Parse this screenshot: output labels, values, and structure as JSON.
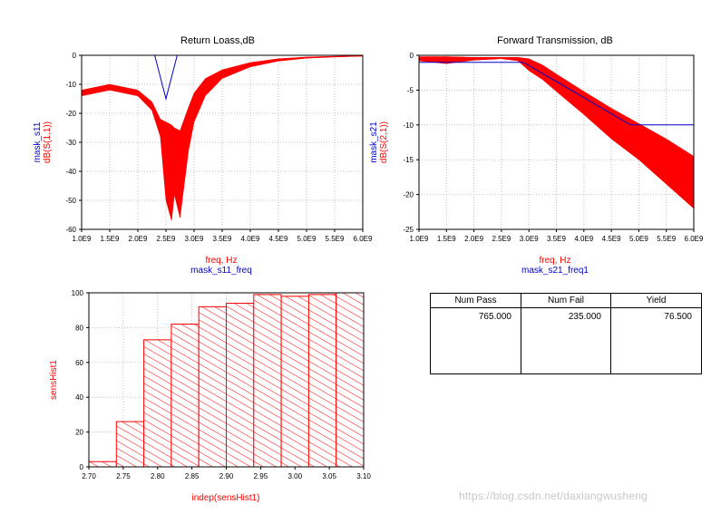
{
  "chart_data": [
    {
      "type": "line",
      "title": "Return Loass,dB",
      "x": [
        1.0,
        1.5,
        2.0,
        2.25,
        2.4,
        2.5,
        2.6,
        2.65,
        2.75,
        2.9,
        3.0,
        3.2,
        3.5,
        4.0,
        4.5,
        5.0,
        5.5,
        6.0
      ],
      "x_units": "GHz",
      "series": [
        {
          "name": "dB(S(1,1))",
          "color": "#ff0000",
          "band": "upper",
          "values": [
            -12,
            -10,
            -12,
            -16,
            -22,
            -23,
            -24,
            -25,
            -26,
            -18,
            -13,
            -8,
            -5,
            -2.5,
            -1.2,
            -0.6,
            -0.3,
            -0.1
          ]
        },
        {
          "name": "dB(S(1,1))",
          "color": "#ff0000",
          "band": "lower",
          "values": [
            -14,
            -12,
            -14,
            -19,
            -28,
            -50,
            -57,
            -48,
            -56,
            -33,
            -23,
            -14,
            -8,
            -4,
            -2,
            -1,
            -0.6,
            -0.3
          ]
        },
        {
          "name": "mask_s11",
          "color": "#0000cc",
          "x": [
            2.3,
            2.5,
            2.5,
            2.7
          ],
          "values": [
            0,
            -15,
            -15,
            0
          ]
        }
      ],
      "xlim": [
        1.0,
        6.0
      ],
      "ylim": [
        -60,
        0
      ],
      "xticks": [
        "1.0E9",
        "1.5E9",
        "2.0E9",
        "2.5E9",
        "3.0E9",
        "3.5E9",
        "4.0E9",
        "4.5E9",
        "5.0E9",
        "5.5E9",
        "6.0E9"
      ],
      "yticks": [
        "0",
        "-10",
        "-20",
        "-30",
        "-40",
        "-50",
        "-60"
      ],
      "xlabel_lines": [
        "freq, Hz",
        "mask_s11_freq"
      ],
      "ylabel_lines": [
        "mask_s11",
        "dB(S(1,1))"
      ]
    },
    {
      "type": "line",
      "title": "Forward Transmission, dB",
      "x": [
        1.0,
        1.5,
        2.0,
        2.5,
        2.8,
        3.0,
        3.25,
        3.5,
        4.0,
        4.5,
        5.0,
        5.5,
        6.0
      ],
      "x_units": "GHz",
      "series": [
        {
          "name": "dB(S(2,1))",
          "color": "#ff0000",
          "band": "upper",
          "values": [
            -0.2,
            -0.2,
            -0.3,
            -0.3,
            -0.3,
            -0.5,
            -1.4,
            -2.7,
            -5.2,
            -7.6,
            -9.8,
            -12,
            -14.5
          ]
        },
        {
          "name": "dB(S(2,1))",
          "color": "#ff0000",
          "band": "lower",
          "values": [
            -0.8,
            -1.2,
            -0.7,
            -0.5,
            -0.8,
            -2.2,
            -3.5,
            -5.2,
            -8.5,
            -12,
            -15,
            -18.5,
            -22
          ]
        },
        {
          "name": "mask_s21",
          "color": "#0000cc",
          "x": [
            1.0,
            2.9,
            4.85,
            6.0
          ],
          "values": [
            -1,
            -1,
            -10,
            -10
          ]
        }
      ],
      "xlim": [
        1.0,
        6.0
      ],
      "ylim": [
        -25,
        0
      ],
      "xticks": [
        "1.0E9",
        "1.5E9",
        "2.0E9",
        "2.5E9",
        "3.0E9",
        "3.5E9",
        "4.0E9",
        "4.5E9",
        "5.0E9",
        "5.5E9",
        "6.0E9"
      ],
      "yticks": [
        "0",
        "-5",
        "-10",
        "-15",
        "-20",
        "-25"
      ],
      "xlabel_lines": [
        "freq, Hz",
        "mask_s21_freq1"
      ],
      "ylabel_lines": [
        "mask_s21",
        "dB(S(2,1))"
      ]
    },
    {
      "type": "bar",
      "title": "",
      "bin_edges": [
        2.7,
        2.74,
        2.78,
        2.82,
        2.86,
        2.9,
        2.94,
        2.98,
        3.02,
        3.06,
        3.1
      ],
      "values": [
        3,
        26,
        73,
        82,
        92,
        94,
        99,
        98,
        99,
        100
      ],
      "color": "#ff0000",
      "xlim": [
        2.7,
        3.1
      ],
      "ylim": [
        0,
        100
      ],
      "xticks": [
        "2.70",
        "2.75",
        "2.80",
        "2.85",
        "2.90",
        "2.95",
        "3.00",
        "3.05",
        "3.10"
      ],
      "yticks": [
        "0",
        "20",
        "40",
        "60",
        "80",
        "100"
      ],
      "xlabel": "indep(sensHist1)",
      "ylabel": "sensHist1"
    },
    {
      "type": "table",
      "columns": [
        "Num Pass",
        "Num Fail",
        "Yield"
      ],
      "rows": [
        [
          "765.000",
          "235.000",
          "76.500"
        ]
      ]
    }
  ],
  "watermark": "https://blog.csdn.net/daxiangwusheng"
}
